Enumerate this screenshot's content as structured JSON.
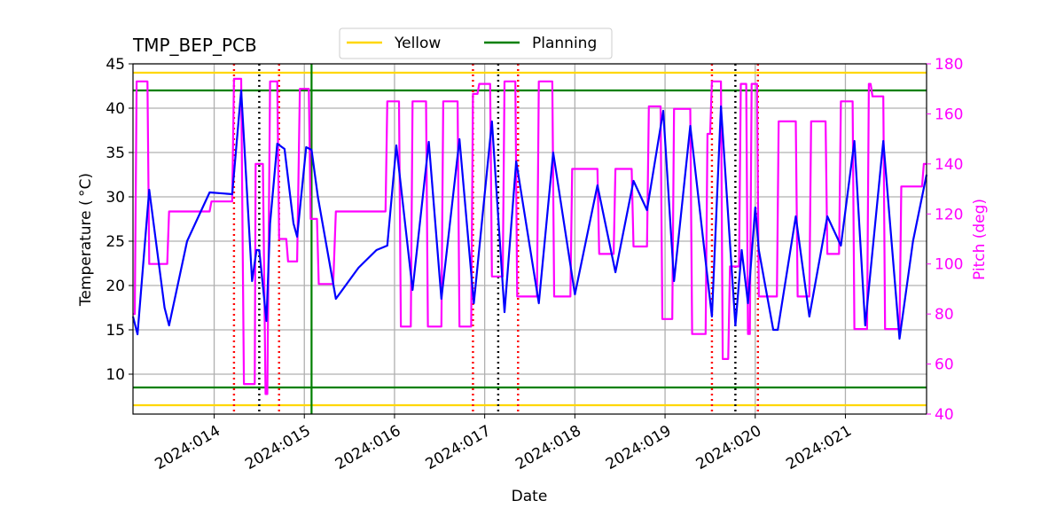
{
  "chart_data": {
    "type": "line",
    "title": "TMP_BEP_PCB",
    "xlabel": "Date",
    "ylabel": "Temperature ($^\\circ$C)",
    "ylabel_display": "Temperature ( °C)",
    "y2label": "Pitch (deg)",
    "xlim": [
      13.1,
      21.9
    ],
    "ylim": [
      5.5,
      45
    ],
    "y2lim": [
      40,
      180
    ],
    "x_ticks": [
      14,
      15,
      16,
      17,
      18,
      19,
      20,
      21
    ],
    "x_tick_labels": [
      "2024:014",
      "2024:015",
      "2024:016",
      "2024:017",
      "2024:018",
      "2024:019",
      "2024:020",
      "2024:021"
    ],
    "y_ticks": [
      10,
      15,
      20,
      25,
      30,
      35,
      40,
      45
    ],
    "y2_ticks": [
      40,
      60,
      80,
      100,
      120,
      140,
      160,
      180
    ],
    "grid": true,
    "legend": {
      "placement": "top-center",
      "entries": [
        {
          "label": "Yellow",
          "color": "#ffd700"
        },
        {
          "label": "Planning",
          "color": "#008000"
        }
      ]
    },
    "limits": {
      "yellow": {
        "high": 44.0,
        "low": 6.5,
        "color": "#ffd700"
      },
      "planning": {
        "high": 42.0,
        "low": 8.5,
        "color": "#008000"
      }
    },
    "planning_vline": {
      "x": 15.08,
      "color": "#008000"
    },
    "red_dotted_vlines": [
      14.22,
      14.72,
      16.87,
      17.37,
      19.52,
      20.03
    ],
    "black_dotted_vlines": [
      14.5,
      17.15,
      19.78
    ],
    "colors": {
      "temperature": "#0000ff",
      "pitch": "#ff00ff",
      "red_marker": "#ff0000",
      "black_marker": "#000000",
      "grid": "#b0b0b0",
      "pitch_axis": "#ff00ff"
    },
    "series": [
      {
        "name": "",
        "axis": "left",
        "color": "#0000ff",
        "x": [
          13.1,
          13.15,
          13.28,
          13.45,
          13.5,
          13.7,
          13.95,
          14.2,
          14.3,
          14.42,
          14.47,
          14.5,
          14.58,
          14.62,
          14.7,
          14.78,
          14.88,
          14.92,
          15.02,
          15.08,
          15.15,
          15.35,
          15.6,
          15.8,
          15.92,
          16.02,
          16.2,
          16.38,
          16.52,
          16.72,
          16.88,
          17.08,
          17.22,
          17.35,
          17.6,
          17.76,
          18.0,
          18.25,
          18.45,
          18.65,
          18.8,
          18.98,
          19.1,
          19.28,
          19.52,
          19.62,
          19.78,
          19.85,
          19.92,
          20.0,
          20.04,
          20.2,
          20.25,
          20.45,
          20.6,
          20.8,
          20.95,
          21.1,
          21.22,
          21.42,
          21.6,
          21.75,
          21.9
        ],
        "y": [
          16.5,
          14.5,
          30.8,
          17.5,
          15.5,
          25.0,
          30.5,
          30.3,
          42.0,
          20.5,
          24.0,
          24.0,
          16.0,
          27.0,
          36.0,
          35.4,
          27.0,
          25.5,
          35.6,
          35.3,
          30.0,
          18.5,
          22.0,
          24.0,
          24.5,
          35.8,
          19.5,
          36.2,
          18.5,
          36.5,
          18.0,
          38.5,
          17.0,
          34.0,
          18.0,
          35.0,
          19.0,
          31.3,
          21.5,
          31.8,
          28.5,
          39.7,
          20.5,
          38.0,
          16.5,
          40.2,
          15.5,
          24.0,
          18.0,
          28.8,
          24.0,
          15.0,
          15.0,
          27.8,
          16.5,
          27.8,
          24.5,
          36.3,
          15.5,
          36.3,
          14.0,
          25.0,
          32.5
        ]
      },
      {
        "name": "",
        "axis": "right",
        "color": "#ff00ff",
        "x": [
          13.1,
          13.12,
          13.14,
          13.16,
          13.26,
          13.28,
          13.48,
          13.5,
          13.95,
          13.97,
          14.2,
          14.22,
          14.3,
          14.33,
          14.45,
          14.46,
          14.54,
          14.57,
          14.59,
          14.62,
          14.7,
          14.72,
          14.8,
          14.82,
          14.92,
          14.95,
          15.05,
          15.07,
          15.14,
          15.16,
          15.32,
          15.35,
          15.9,
          15.92,
          16.05,
          16.07,
          16.18,
          16.2,
          16.35,
          16.37,
          16.52,
          16.54,
          16.7,
          16.72,
          16.85,
          16.87,
          16.92,
          16.94,
          17.06,
          17.08,
          17.2,
          17.22,
          17.34,
          17.36,
          17.58,
          17.6,
          17.75,
          17.77,
          17.95,
          17.97,
          18.25,
          18.27,
          18.43,
          18.45,
          18.63,
          18.65,
          18.8,
          18.82,
          18.95,
          18.97,
          19.08,
          19.1,
          19.28,
          19.3,
          19.45,
          19.47,
          19.5,
          19.52,
          19.62,
          19.64,
          19.7,
          19.72,
          19.82,
          19.84,
          19.9,
          19.92,
          19.94,
          19.96,
          20.02,
          20.04,
          20.24,
          20.26,
          20.45,
          20.47,
          20.6,
          20.62,
          20.78,
          20.8,
          20.93,
          20.95,
          21.08,
          21.1,
          21.24,
          21.26,
          21.28,
          21.3,
          21.42,
          21.44,
          21.6,
          21.62,
          21.85,
          21.87,
          21.9
        ],
        "y": [
          80,
          80,
          173,
          173,
          173,
          100,
          100,
          121,
          121,
          125,
          125,
          174,
          174,
          52,
          52,
          140,
          140,
          48,
          48,
          173,
          173,
          110,
          110,
          101,
          101,
          170,
          170,
          118,
          118,
          92,
          92,
          121,
          121,
          165,
          165,
          75,
          75,
          165,
          165,
          75,
          75,
          165,
          165,
          75,
          75,
          168,
          168,
          172,
          172,
          95,
          95,
          173,
          173,
          87,
          87,
          173,
          173,
          87,
          87,
          138,
          138,
          104,
          104,
          138,
          138,
          107,
          107,
          163,
          163,
          78,
          78,
          162,
          162,
          72,
          72,
          152,
          152,
          173,
          173,
          62,
          62,
          99,
          99,
          172,
          172,
          72,
          72,
          172,
          172,
          87,
          87,
          157,
          157,
          87,
          87,
          157,
          157,
          104,
          104,
          165,
          165,
          74,
          74,
          172,
          172,
          167,
          167,
          74,
          74,
          131,
          131,
          140,
          140
        ]
      }
    ]
  }
}
